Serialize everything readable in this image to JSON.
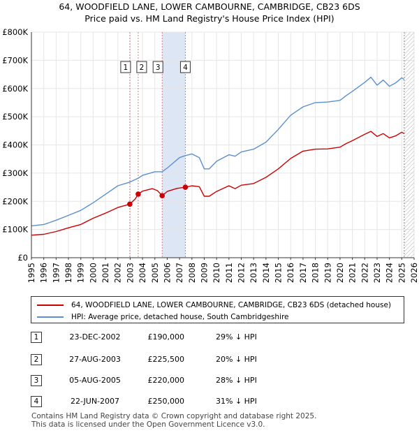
{
  "title_lines": [
    "64, WOODFIELD LANE, LOWER CAMBOURNE, CAMBRIDGE, CB23 6DS",
    "Price paid vs. HM Land Registry's House Price Index (HPI)"
  ],
  "chart_data": {
    "type": "line",
    "title": "64, WOODFIELD LANE, LOWER CAMBOURNE, CAMBRIDGE, CB23 6DS — Price paid vs. HM Land Registry's House Price Index (HPI)",
    "xlim": [
      1995,
      2026
    ],
    "ylim": [
      0,
      800000
    ],
    "x_ticks": [
      1995,
      1996,
      1997,
      1998,
      1999,
      2000,
      2001,
      2002,
      2003,
      2004,
      2005,
      2006,
      2007,
      2008,
      2009,
      2010,
      2011,
      2012,
      2013,
      2014,
      2015,
      2016,
      2017,
      2018,
      2019,
      2020,
      2021,
      2022,
      2023,
      2024,
      2025,
      2026
    ],
    "y_ticks": [
      {
        "value": 0,
        "label": "£0"
      },
      {
        "value": 100000,
        "label": "£100K"
      },
      {
        "value": 200000,
        "label": "£200K"
      },
      {
        "value": 300000,
        "label": "£300K"
      },
      {
        "value": 400000,
        "label": "£400K"
      },
      {
        "value": 500000,
        "label": "£500K"
      },
      {
        "value": 600000,
        "label": "£600K"
      },
      {
        "value": 700000,
        "label": "£700K"
      },
      {
        "value": 800000,
        "label": "£800K"
      }
    ],
    "forecast_start": 2025.2,
    "series": [
      {
        "name": "64, WOODFIELD LANE, LOWER CAMBOURNE, CAMBRIDGE, CB23 6DS (detached house)",
        "color": "#cc0000",
        "points": [
          [
            1995.0,
            80000
          ],
          [
            1996.0,
            83000
          ],
          [
            1996.5,
            88000
          ],
          [
            1997.0,
            93000
          ],
          [
            1998.0,
            106000
          ],
          [
            1999.0,
            118000
          ],
          [
            2000.0,
            140000
          ],
          [
            2001.0,
            158000
          ],
          [
            2002.0,
            178000
          ],
          [
            2002.97,
            190000
          ],
          [
            2003.4,
            208000
          ],
          [
            2003.65,
            225500
          ],
          [
            2004.0,
            236000
          ],
          [
            2004.8,
            245000
          ],
          [
            2005.2,
            238000
          ],
          [
            2005.59,
            220000
          ],
          [
            2006.0,
            235000
          ],
          [
            2006.8,
            246000
          ],
          [
            2007.47,
            250000
          ],
          [
            2008.0,
            255000
          ],
          [
            2008.6,
            252000
          ],
          [
            2009.0,
            218000
          ],
          [
            2009.4,
            218000
          ],
          [
            2010.0,
            235000
          ],
          [
            2011.0,
            255000
          ],
          [
            2011.5,
            245000
          ],
          [
            2012.0,
            257000
          ],
          [
            2013.0,
            263000
          ],
          [
            2014.0,
            285000
          ],
          [
            2015.0,
            315000
          ],
          [
            2016.0,
            352000
          ],
          [
            2017.0,
            378000
          ],
          [
            2018.0,
            385000
          ],
          [
            2019.0,
            386000
          ],
          [
            2020.0,
            392000
          ],
          [
            2020.5,
            405000
          ],
          [
            2021.0,
            415000
          ],
          [
            2022.0,
            438000
          ],
          [
            2022.5,
            448000
          ],
          [
            2023.0,
            430000
          ],
          [
            2023.5,
            440000
          ],
          [
            2024.0,
            425000
          ],
          [
            2024.5,
            432000
          ],
          [
            2025.0,
            445000
          ],
          [
            2025.2,
            440000
          ]
        ]
      },
      {
        "name": "HPI: Average price, detached house, South Cambridgeshire",
        "color": "#5b8fd0",
        "points": [
          [
            1995.0,
            113000
          ],
          [
            1996.0,
            118000
          ],
          [
            1996.5,
            125000
          ],
          [
            1997.0,
            133000
          ],
          [
            1998.0,
            150000
          ],
          [
            1999.0,
            168000
          ],
          [
            2000.0,
            195000
          ],
          [
            2001.0,
            225000
          ],
          [
            2002.0,
            255000
          ],
          [
            2002.97,
            268000
          ],
          [
            2003.65,
            282000
          ],
          [
            2004.0,
            292000
          ],
          [
            2005.0,
            305000
          ],
          [
            2005.59,
            305000
          ],
          [
            2006.0,
            318000
          ],
          [
            2007.0,
            355000
          ],
          [
            2007.47,
            362000
          ],
          [
            2008.0,
            368000
          ],
          [
            2008.6,
            355000
          ],
          [
            2009.0,
            315000
          ],
          [
            2009.4,
            315000
          ],
          [
            2010.0,
            342000
          ],
          [
            2011.0,
            365000
          ],
          [
            2011.5,
            360000
          ],
          [
            2012.0,
            375000
          ],
          [
            2013.0,
            385000
          ],
          [
            2014.0,
            410000
          ],
          [
            2015.0,
            455000
          ],
          [
            2016.0,
            505000
          ],
          [
            2017.0,
            535000
          ],
          [
            2018.0,
            550000
          ],
          [
            2019.0,
            552000
          ],
          [
            2020.0,
            558000
          ],
          [
            2020.5,
            575000
          ],
          [
            2021.0,
            590000
          ],
          [
            2022.0,
            622000
          ],
          [
            2022.5,
            640000
          ],
          [
            2023.0,
            612000
          ],
          [
            2023.5,
            630000
          ],
          [
            2024.0,
            608000
          ],
          [
            2024.5,
            620000
          ],
          [
            2025.0,
            638000
          ],
          [
            2025.2,
            632000
          ]
        ]
      }
    ],
    "transactions": [
      {
        "num": "1",
        "x": 2002.97,
        "price": 190000,
        "date": "23-DEC-2002",
        "price_label": "£190,000",
        "hpi_label": "29% ↓ HPI"
      },
      {
        "num": "2",
        "x": 2003.65,
        "price": 225500,
        "date": "27-AUG-2003",
        "price_label": "£225,500",
        "hpi_label": "20% ↓ HPI"
      },
      {
        "num": "3",
        "x": 2005.59,
        "price": 220000,
        "date": "05-AUG-2005",
        "price_label": "£220,000",
        "hpi_label": "28% ↓ HPI"
      },
      {
        "num": "4",
        "x": 2007.47,
        "price": 250000,
        "date": "22-JUN-2007",
        "price_label": "£250,000",
        "hpi_label": "31% ↓ HPI"
      }
    ],
    "shaded_range": [
      2005.59,
      2007.47
    ]
  },
  "legend": {
    "property_label": "64, WOODFIELD LANE, LOWER CAMBOURNE, CAMBRIDGE, CB23 6DS (detached house)",
    "hpi_label": "HPI: Average price, detached house, South Cambridgeshire"
  },
  "footer_lines": [
    "Contains HM Land Registry data © Crown copyright and database right 2025.",
    "This data is licensed under the Open Government Licence v3.0."
  ],
  "colors": {
    "property": "#cc0000",
    "hpi": "#5b8fd0",
    "shade": "#dde6f5",
    "grid": "#e6e6e6"
  }
}
